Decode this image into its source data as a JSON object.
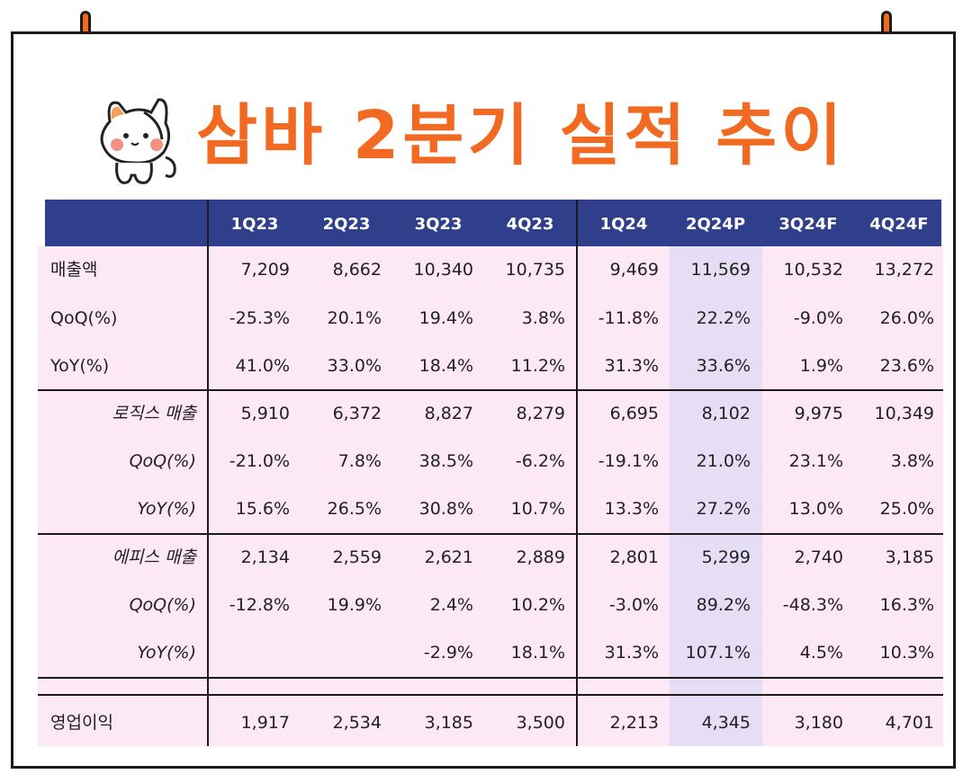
{
  "title": "삼바 2분기 실적 추이",
  "columns": [
    "1Q23",
    "2Q23",
    "3Q23",
    "4Q23",
    "1Q24",
    "2Q24P",
    "3Q24F",
    "4Q24F"
  ],
  "rows": [
    {
      "label": "매출액",
      "style": "main",
      "values": [
        "7,209",
        "8,662",
        "10,340",
        "10,735",
        "9,469",
        "11,569",
        "10,532",
        "13,272"
      ]
    },
    {
      "label": "QoQ(%)",
      "style": "main",
      "values": [
        "-25.3%",
        "20.1%",
        "19.4%",
        "3.8%",
        "-11.8%",
        "22.2%",
        "-9.0%",
        "26.0%"
      ]
    },
    {
      "label": "YoY(%)",
      "style": "main",
      "values": [
        "41.0%",
        "33.0%",
        "18.4%",
        "11.2%",
        "31.3%",
        "33.6%",
        "1.9%",
        "23.6%"
      ]
    },
    {
      "label": "로직스 매출",
      "style": "sub",
      "values": [
        "5,910",
        "6,372",
        "8,827",
        "8,279",
        "6,695",
        "8,102",
        "9,975",
        "10,349"
      ]
    },
    {
      "label": "QoQ(%)",
      "style": "sub",
      "values": [
        "-21.0%",
        "7.8%",
        "38.5%",
        "-6.2%",
        "-19.1%",
        "21.0%",
        "23.1%",
        "3.8%"
      ]
    },
    {
      "label": "YoY(%)",
      "style": "sub",
      "values": [
        "15.6%",
        "26.5%",
        "30.8%",
        "10.7%",
        "13.3%",
        "27.2%",
        "13.0%",
        "25.0%"
      ]
    },
    {
      "label": "에피스 매출",
      "style": "sub",
      "values": [
        "2,134",
        "2,559",
        "2,621",
        "2,889",
        "2,801",
        "5,299",
        "2,740",
        "3,185"
      ]
    },
    {
      "label": "QoQ(%)",
      "style": "sub",
      "values": [
        "-12.8%",
        "19.9%",
        "2.4%",
        "10.2%",
        "-3.0%",
        "89.2%",
        "-48.3%",
        "16.3%"
      ]
    },
    {
      "label": "YoY(%)",
      "style": "sub",
      "values": [
        "",
        "",
        "-2.9%",
        "18.1%",
        "31.3%",
        "107.1%",
        "4.5%",
        "10.3%"
      ]
    },
    {
      "label": "영업이익",
      "style": "main",
      "values": [
        "1,917",
        "2,534",
        "3,185",
        "3,500",
        "2,213",
        "4,345",
        "3,180",
        "4,701"
      ]
    }
  ],
  "colors": {
    "accent": "#f26a22",
    "header_bg": "#2f3f8b",
    "body_bg": "#fde8f6",
    "highlight_col": "#e6def5"
  }
}
